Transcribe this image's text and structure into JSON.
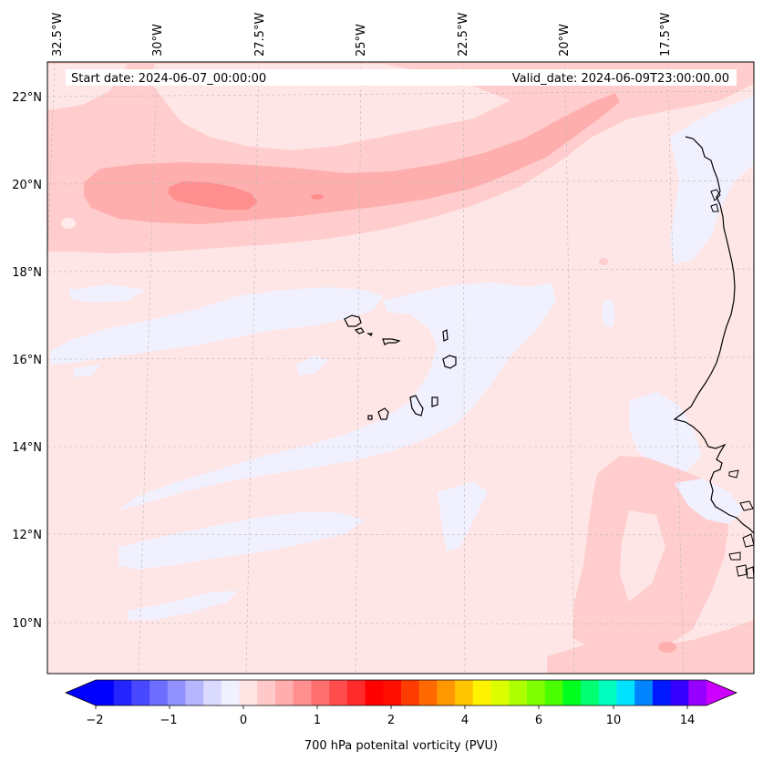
{
  "map": {
    "start_date": "Start date: 2024-06-07_00:00:00",
    "valid_date": "Valid_date: 2024-06-09T23:00:00.00",
    "lon_labels": [
      "32.5°W",
      "30°W",
      "27.5°W",
      "25°W",
      "22.5°W",
      "20°W",
      "17.5°W"
    ],
    "lat_labels": [
      "22°N",
      "20°N",
      "18°N",
      "16°N",
      "14°N",
      "12°N",
      "10°N"
    ],
    "colorbar": {
      "label": "700 hPa potenital vorticity (PVU)",
      "tick_labels": [
        "−2",
        "−1",
        "0",
        "1",
        "2",
        "4",
        "6",
        "10",
        "14"
      ],
      "colors": [
        "#0000ff",
        "#2424ff",
        "#4848ff",
        "#6d6dff",
        "#9191ff",
        "#b6b6ff",
        "#dadaff",
        "#f0f0ff",
        "#ffe4e4",
        "#ffc9c9",
        "#ffadad",
        "#ff8e8e",
        "#ff6f6f",
        "#ff4d4d",
        "#ff2a2a",
        "#ff0000",
        "#ff0d00",
        "#ff3c00",
        "#ff6a00",
        "#ff9700",
        "#ffc600",
        "#fff200",
        "#dcff00",
        "#aeff00",
        "#80ff00",
        "#4bff00",
        "#00ff1f",
        "#00ff72",
        "#00ffbe",
        "#00e2ff",
        "#0085ff",
        "#0018ff",
        "#3500ff",
        "#9600ff"
      ],
      "extend_min_color": "#0000ff",
      "extend_max_color": "#cc00ff"
    }
  }
}
